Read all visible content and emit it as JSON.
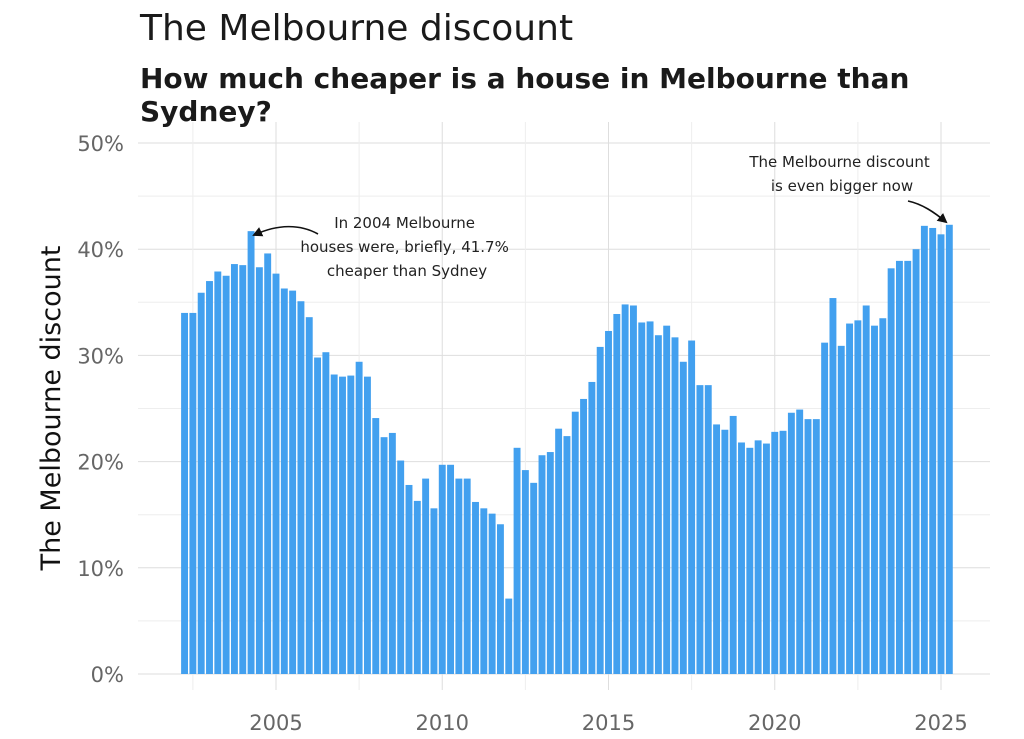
{
  "chart_data": {
    "type": "bar",
    "title": "The Melbourne discount",
    "subtitle": "How much cheaper is a house in Melbourne than Sydney?",
    "ylabel": "The Melbourne discount",
    "xlabel": "",
    "ylim": [
      0,
      50
    ],
    "y_ticks": [
      "0%",
      "10%",
      "20%",
      "30%",
      "40%",
      "50%"
    ],
    "x_ticks": [
      "2005",
      "2010",
      "2015",
      "2020",
      "2025"
    ],
    "x_tick_years": [
      2005,
      2010,
      2015,
      2020,
      2025
    ],
    "x_start": 2002.25,
    "x_step": 0.25,
    "grid": true,
    "bar_color": "#42a0ef",
    "values": [
      34.0,
      34.0,
      35.9,
      37.0,
      37.9,
      37.5,
      38.6,
      38.5,
      41.7,
      38.3,
      39.6,
      37.7,
      36.3,
      36.1,
      35.1,
      33.6,
      29.8,
      30.3,
      28.2,
      28.0,
      28.1,
      29.4,
      28.0,
      24.1,
      22.3,
      22.7,
      20.1,
      17.8,
      16.3,
      18.4,
      15.6,
      19.7,
      19.7,
      18.4,
      18.4,
      16.2,
      15.6,
      15.1,
      14.1,
      7.1,
      21.3,
      19.2,
      18.0,
      20.6,
      20.9,
      23.1,
      22.4,
      24.7,
      25.9,
      27.5,
      30.8,
      32.3,
      33.9,
      34.8,
      34.7,
      33.1,
      33.2,
      31.9,
      32.8,
      31.7,
      29.4,
      31.4,
      27.2,
      27.2,
      23.5,
      23.0,
      24.3,
      21.8,
      21.3,
      22.0,
      21.7,
      22.8,
      22.9,
      24.6,
      24.9,
      24.0,
      24.0,
      31.2,
      35.4,
      30.9,
      33.0,
      33.3,
      34.7,
      32.8,
      33.5,
      38.2,
      38.9,
      38.9,
      40.0,
      42.2,
      42.0,
      41.4,
      42.3
    ],
    "annotations": [
      {
        "lines": [
          "In 2004 Melbourne",
          "houses were, briefly, 41.7%",
          "cheaper than Sydney"
        ]
      },
      {
        "lines": [
          "The Melbourne discount",
          "is even bigger now"
        ]
      }
    ]
  }
}
